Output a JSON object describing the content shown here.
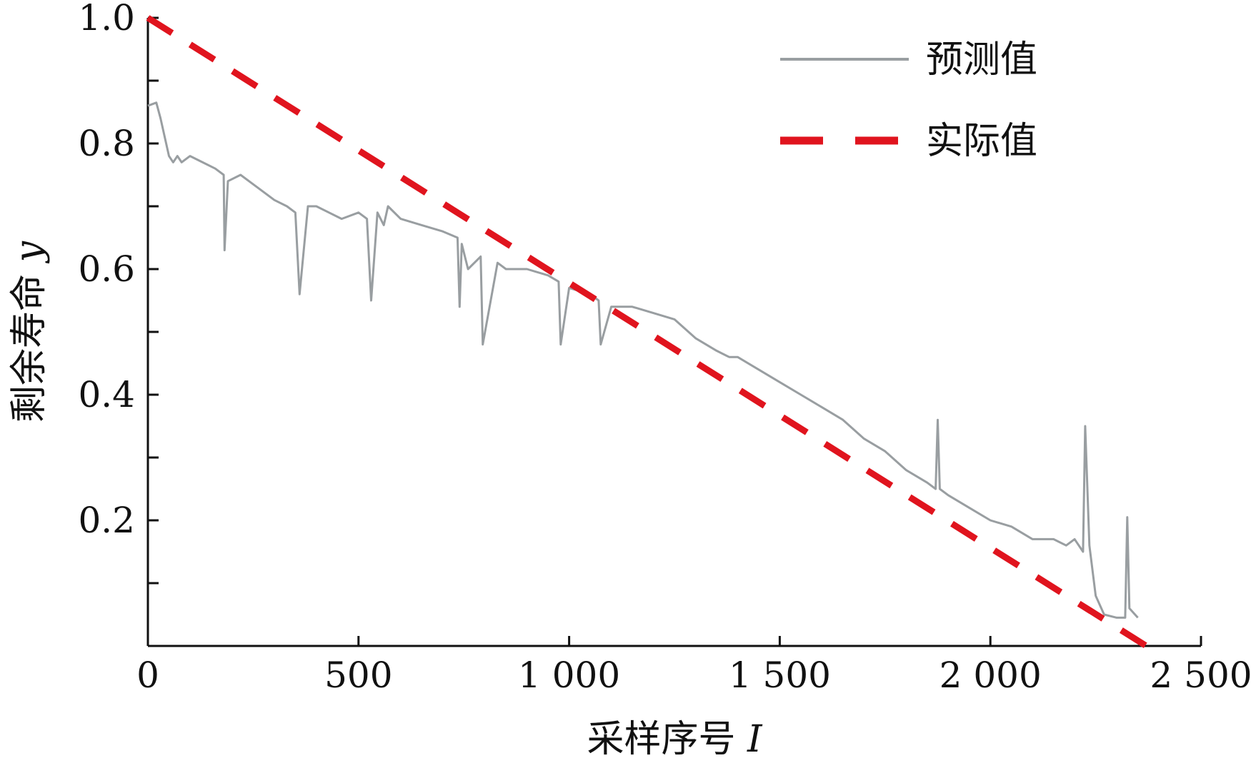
{
  "chart_data": {
    "type": "line",
    "xlabel": "采样序号",
    "xlabel_var": "I",
    "ylabel": "剩余寿命",
    "ylabel_var": "y",
    "xlim": [
      0,
      2500
    ],
    "ylim": [
      0,
      1.0
    ],
    "x_ticks": [
      0,
      500,
      1000,
      1500,
      2000,
      2500
    ],
    "x_tick_labels": [
      "0",
      "500",
      "1 000",
      "1 500",
      "2 000",
      "2 500"
    ],
    "y_ticks": [
      0.2,
      0.4,
      0.6,
      0.8,
      1.0
    ],
    "y_tick_labels": [
      "0.2",
      "0.4",
      "0.6",
      "0.8",
      "1.0"
    ],
    "y_minor_ticks": [
      0.1,
      0.3,
      0.5,
      0.7,
      0.9
    ],
    "grid": false,
    "legend_position": "top-right",
    "series": [
      {
        "name": "预测值",
        "color": "#999ea1",
        "style": "solid",
        "x": [
          0,
          20,
          30,
          40,
          50,
          60,
          70,
          80,
          100,
          130,
          160,
          180,
          182,
          190,
          220,
          260,
          300,
          330,
          350,
          360,
          380,
          400,
          430,
          460,
          500,
          520,
          530,
          545,
          560,
          570,
          600,
          650,
          700,
          735,
          740,
          745,
          760,
          790,
          795,
          830,
          850,
          900,
          950,
          975,
          980,
          1000,
          1050,
          1070,
          1075,
          1100,
          1150,
          1200,
          1250,
          1300,
          1350,
          1380,
          1400,
          1450,
          1500,
          1550,
          1600,
          1650,
          1700,
          1750,
          1800,
          1850,
          1870,
          1875,
          1880,
          1900,
          1950,
          2000,
          2050,
          2100,
          2150,
          2180,
          2200,
          2220,
          2225,
          2235,
          2250,
          2270,
          2300,
          2320,
          2325,
          2330,
          2350
        ],
        "y": [
          0.86,
          0.865,
          0.84,
          0.81,
          0.78,
          0.77,
          0.78,
          0.77,
          0.78,
          0.77,
          0.76,
          0.75,
          0.63,
          0.74,
          0.75,
          0.73,
          0.71,
          0.7,
          0.69,
          0.56,
          0.7,
          0.7,
          0.69,
          0.68,
          0.69,
          0.68,
          0.55,
          0.69,
          0.67,
          0.7,
          0.68,
          0.67,
          0.66,
          0.65,
          0.54,
          0.64,
          0.6,
          0.62,
          0.48,
          0.61,
          0.6,
          0.6,
          0.59,
          0.58,
          0.48,
          0.57,
          0.56,
          0.55,
          0.48,
          0.54,
          0.54,
          0.53,
          0.52,
          0.49,
          0.47,
          0.46,
          0.46,
          0.44,
          0.42,
          0.4,
          0.38,
          0.36,
          0.33,
          0.31,
          0.28,
          0.26,
          0.25,
          0.36,
          0.25,
          0.24,
          0.22,
          0.2,
          0.19,
          0.17,
          0.17,
          0.16,
          0.17,
          0.15,
          0.35,
          0.16,
          0.08,
          0.05,
          0.045,
          0.045,
          0.205,
          0.06,
          0.045
        ]
      },
      {
        "name": "实际值",
        "color": "#e0141e",
        "style": "dashed",
        "x": [
          0,
          2370
        ],
        "y": [
          1.0,
          0.0
        ]
      }
    ]
  }
}
